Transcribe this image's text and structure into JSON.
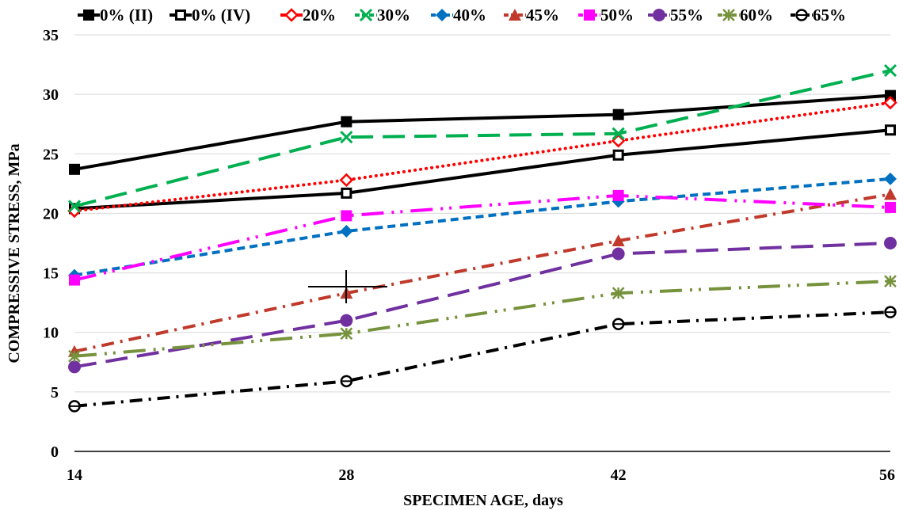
{
  "chart_data": {
    "type": "line",
    "title": "",
    "xlabel": "SPECIMEN  AGE, days",
    "ylabel": "COMPRESSIVE  STRESS, MPa",
    "x": [
      14,
      28,
      42,
      56
    ],
    "x_tick_labels": [
      "14",
      "28",
      "42",
      "56"
    ],
    "xlim": [
      14,
      56
    ],
    "ylim": [
      0,
      35
    ],
    "y_ticks": [
      0,
      5,
      10,
      15,
      20,
      25,
      30,
      35
    ],
    "y_tick_labels": [
      "0",
      "5",
      "10",
      "15",
      "20",
      "25",
      "30",
      "35"
    ],
    "grid": "horizontal",
    "legend_position": "top",
    "series": [
      {
        "name": "0% (II)",
        "values": [
          23.7,
          27.7,
          28.3,
          29.9
        ],
        "color": "#000000",
        "marker": "square-filled",
        "dash": "solid"
      },
      {
        "name": "0% (IV)",
        "values": [
          20.4,
          21.7,
          24.9,
          27.0
        ],
        "color": "#000000",
        "marker": "square-open",
        "dash": "solid"
      },
      {
        "name": "20%",
        "values": [
          20.2,
          22.8,
          26.1,
          29.3
        ],
        "color": "#ff0000",
        "marker": "diamond-open",
        "dash": "dot"
      },
      {
        "name": "30%",
        "values": [
          20.6,
          26.4,
          26.7,
          32.0
        ],
        "color": "#00b050",
        "marker": "x",
        "dash": "longdash"
      },
      {
        "name": "40%",
        "values": [
          14.8,
          18.5,
          21.0,
          22.9
        ],
        "color": "#0070c0",
        "marker": "diamond-filled",
        "dash": "dash"
      },
      {
        "name": "45%",
        "values": [
          8.4,
          13.3,
          17.7,
          21.6
        ],
        "color": "#c0392b",
        "marker": "triangle",
        "dash": "dashdot"
      },
      {
        "name": "50%",
        "values": [
          14.4,
          19.8,
          21.5,
          20.5
        ],
        "color": "#ff00ff",
        "marker": "square-filled",
        "dash": "longdashdotdot"
      },
      {
        "name": "55%",
        "values": [
          7.1,
          11.0,
          16.6,
          17.5
        ],
        "color": "#7030a0",
        "marker": "circle-filled",
        "dash": "longdash"
      },
      {
        "name": "60%",
        "values": [
          8.0,
          9.9,
          13.3,
          14.3
        ],
        "color": "#76923c",
        "marker": "star",
        "dash": "longdashdotdot"
      },
      {
        "name": "65%",
        "values": [
          3.8,
          5.9,
          10.7,
          11.7
        ],
        "color": "#000000",
        "marker": "circle-open",
        "dash": "dashdot"
      }
    ]
  }
}
